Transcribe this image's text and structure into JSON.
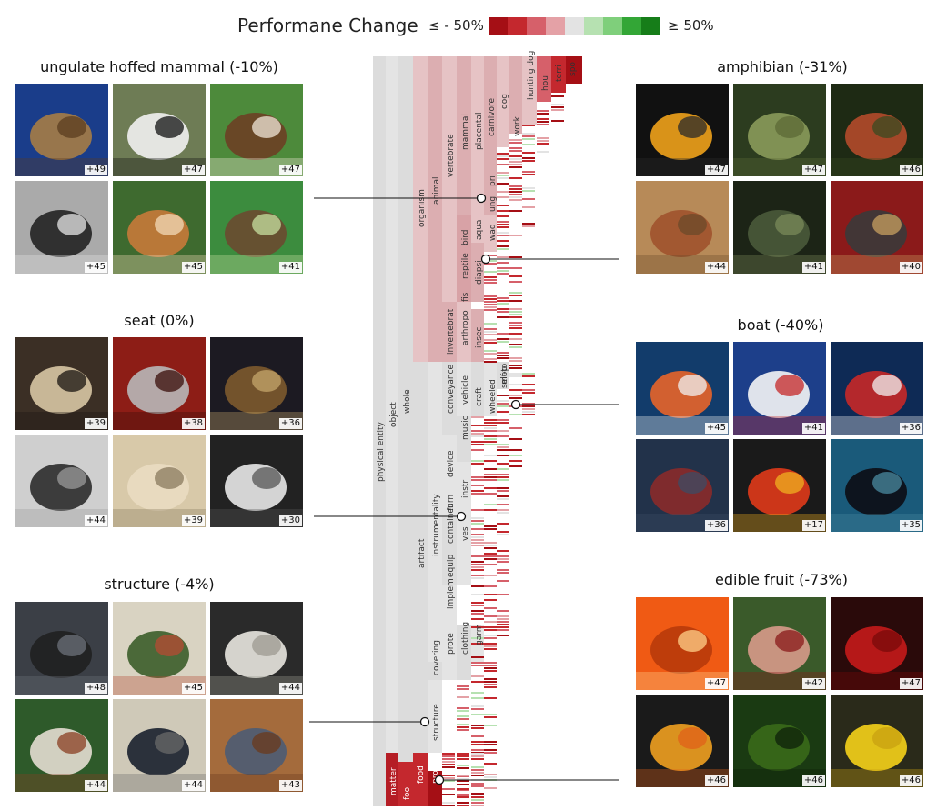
{
  "header": {
    "title": "Performane Change",
    "legend_low": "≤ - 50%",
    "legend_high": "≥ 50%",
    "legend_colors": [
      "#a50f15",
      "#c4282e",
      "#d6606a",
      "#e4a1a6",
      "#e3e3e3",
      "#b6e1b1",
      "#7fcf7b",
      "#33a636",
      "#167d19"
    ]
  },
  "groups": [
    {
      "id": "ungulate",
      "title": "ungulate hoffed mammal (-10%)",
      "scores": [
        "+49",
        "+47",
        "+47",
        "+45",
        "+45",
        "+41"
      ],
      "subjects": [
        "ram-photo",
        "zebra-photo",
        "antelope-photo",
        "goat-photo",
        "gazelle-photo",
        "camel-photo"
      ]
    },
    {
      "id": "seat",
      "title": "seat (0%)",
      "scores": [
        "+39",
        "+38",
        "+36",
        "+44",
        "+39",
        "+30"
      ],
      "subjects": [
        "armchair-photo",
        "folding-chair-photo",
        "antique-chair-photo",
        "office-chair-photo",
        "sofa-photo",
        "bench-photo"
      ]
    },
    {
      "id": "structure",
      "title": "structure (-4%)",
      "scores": [
        "+48",
        "+45",
        "+44",
        "+44",
        "+44",
        "+43"
      ],
      "subjects": [
        "bridge-photo",
        "hotel-garden-photo",
        "railing-photo",
        "yurt-photo",
        "plaque-photo",
        "barn-photo"
      ]
    },
    {
      "id": "amphibian",
      "title": "amphibian (-31%)",
      "scores": [
        "+47",
        "+47",
        "+46",
        "+44",
        "+41",
        "+40"
      ],
      "subjects": [
        "salamander-photo",
        "frog-photo",
        "newt-photo",
        "newt-sand-photo",
        "toad-photo",
        "eft-photo"
      ]
    },
    {
      "id": "boat",
      "title": "boat (-40%)",
      "scores": [
        "+45",
        "+41",
        "+36",
        "+36",
        "+17",
        "+35"
      ],
      "subjects": [
        "lifeboat-photo",
        "speedboat-photo",
        "fireboat-photo",
        "sailboat-photo",
        "red-boat-photo",
        "gondola-photo"
      ]
    },
    {
      "id": "fruit",
      "title": "edible fruit (-73%)",
      "scores": [
        "+47",
        "+42",
        "+47",
        "+46",
        "+46",
        "+46"
      ],
      "subjects": [
        "orange-photo",
        "fig-photo",
        "pomegranate-photo",
        "papaya-photo",
        "avocado-photo",
        "lemon-photo"
      ]
    }
  ],
  "tree": {
    "nodes": [
      "physical entity",
      "object",
      "whole",
      "organism",
      "animal",
      "vertebrate",
      "mammal",
      "placental",
      "carnivore",
      "dog",
      "work",
      "hunting dog",
      "hou",
      "terri",
      "spo",
      "ung",
      "pri",
      "wad",
      "aqua",
      "bird",
      "diapsi",
      "reptile",
      "fis",
      "insec",
      "arthropo",
      "invertebrat",
      "artifact",
      "instrumentality",
      "conveyance",
      "vehicle",
      "craft",
      "wheeled",
      "self-pl",
      "moto",
      "device",
      "music",
      "instr",
      "container",
      "furn",
      "ves",
      "equip",
      "implem",
      "covering",
      "prote",
      "clothing",
      "garm",
      "structure",
      "matter",
      "foo",
      "food",
      "pro"
    ]
  }
}
